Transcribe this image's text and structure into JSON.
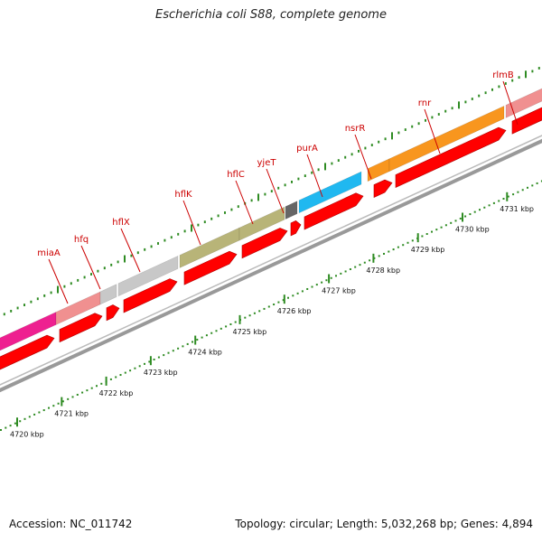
{
  "title": "Escherichia coli S88, complete genome",
  "footer": {
    "accession": "Accession: NC_011742",
    "summary": "Topology: circular; Length: 5,032,268 bp; Genes: 4,894"
  },
  "colors": {
    "cds": "#ff0000",
    "backbone": "#999999",
    "tick_green": "#2e8b22",
    "gene_label": "#cc0000"
  },
  "gene_labels": [
    "miaA",
    "hfq",
    "hflX",
    "hflK",
    "hflC",
    "yjeT",
    "purA",
    "nsrR",
    "rnr",
    "rlmB"
  ],
  "scale_labels": [
    "4720 kbp",
    "4721 kbp",
    "4722 kbp",
    "4723 kbp",
    "4724 kbp",
    "4725 kbp",
    "4726 kbp",
    "4727 kbp",
    "4728 kbp",
    "4729 kbp",
    "4730 kbp",
    "4731 kbp"
  ],
  "feature_colors": [
    "#ee2090",
    "#f09090",
    "#c8c8c8",
    "#c8c8c8",
    "#b8b478",
    "#b8b478",
    "#666666",
    "#20b8f0",
    "#f8961e",
    "#f8961e",
    "#f09090"
  ]
}
